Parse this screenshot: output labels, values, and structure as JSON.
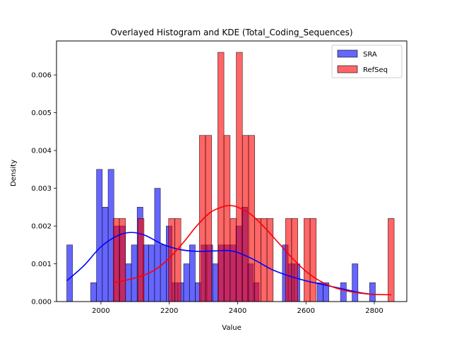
{
  "chart_data": {
    "type": "histogram",
    "title": "Overlayed Histogram and KDE (Total_Coding_Sequences)",
    "xlabel": "Value",
    "ylabel": "Density",
    "xlim": [
      1870,
      2895
    ],
    "ylim": [
      0,
      0.0069
    ],
    "xticks": [
      2000,
      2200,
      2400,
      2600,
      2800
    ],
    "yticks": [
      0.0,
      0.001,
      0.002,
      0.003,
      0.004,
      0.005,
      0.006
    ],
    "ytick_labels": [
      "0.000",
      "0.001",
      "0.002",
      "0.003",
      "0.004",
      "0.005",
      "0.006"
    ],
    "legend_position": "upper right",
    "series": [
      {
        "name": "SRA",
        "color": "#0000ff",
        "bar_alpha": 0.6,
        "bins": [
          {
            "x0": 1900,
            "x1": 1917,
            "y": 0.0015
          },
          {
            "x0": 1970,
            "x1": 1987,
            "y": 0.0005
          },
          {
            "x0": 1987,
            "x1": 2004,
            "y": 0.0035
          },
          {
            "x0": 2004,
            "x1": 2021,
            "y": 0.0025
          },
          {
            "x0": 2021,
            "x1": 2038,
            "y": 0.0035
          },
          {
            "x0": 2038,
            "x1": 2055,
            "y": 0.002
          },
          {
            "x0": 2055,
            "x1": 2072,
            "y": 0.002
          },
          {
            "x0": 2072,
            "x1": 2089,
            "y": 0.001
          },
          {
            "x0": 2089,
            "x1": 2106,
            "y": 0.0015
          },
          {
            "x0": 2106,
            "x1": 2123,
            "y": 0.0025
          },
          {
            "x0": 2123,
            "x1": 2140,
            "y": 0.0015
          },
          {
            "x0": 2140,
            "x1": 2157,
            "y": 0.0015
          },
          {
            "x0": 2157,
            "x1": 2174,
            "y": 0.003
          },
          {
            "x0": 2174,
            "x1": 2191,
            "y": 0.0015
          },
          {
            "x0": 2191,
            "x1": 2208,
            "y": 0.002
          },
          {
            "x0": 2208,
            "x1": 2225,
            "y": 0.0005
          },
          {
            "x0": 2225,
            "x1": 2242,
            "y": 0.0005
          },
          {
            "x0": 2242,
            "x1": 2259,
            "y": 0.001
          },
          {
            "x0": 2259,
            "x1": 2276,
            "y": 0.0015
          },
          {
            "x0": 2276,
            "x1": 2293,
            "y": 0.0005
          },
          {
            "x0": 2293,
            "x1": 2310,
            "y": 0.0015
          },
          {
            "x0": 2310,
            "x1": 2327,
            "y": 0.0015
          },
          {
            "x0": 2327,
            "x1": 2344,
            "y": 0.001
          },
          {
            "x0": 2344,
            "x1": 2361,
            "y": 0.0015
          },
          {
            "x0": 2361,
            "x1": 2378,
            "y": 0.0015
          },
          {
            "x0": 2378,
            "x1": 2395,
            "y": 0.0015
          },
          {
            "x0": 2395,
            "x1": 2412,
            "y": 0.002
          },
          {
            "x0": 2412,
            "x1": 2429,
            "y": 0.0025
          },
          {
            "x0": 2429,
            "x1": 2446,
            "y": 0.001
          },
          {
            "x0": 2446,
            "x1": 2463,
            "y": 0.0005
          },
          {
            "x0": 2531,
            "x1": 2548,
            "y": 0.0015
          },
          {
            "x0": 2548,
            "x1": 2565,
            "y": 0.001
          },
          {
            "x0": 2565,
            "x1": 2582,
            "y": 0.001
          },
          {
            "x0": 2633,
            "x1": 2650,
            "y": 0.0005
          },
          {
            "x0": 2650,
            "x1": 2667,
            "y": 0.0005
          },
          {
            "x0": 2701,
            "x1": 2718,
            "y": 0.0005
          },
          {
            "x0": 2735,
            "x1": 2752,
            "y": 0.001
          },
          {
            "x0": 2786,
            "x1": 2803,
            "y": 0.0005
          }
        ],
        "kde": [
          {
            "x": 1900,
            "y": 0.00055
          },
          {
            "x": 1950,
            "y": 0.00095
          },
          {
            "x": 2000,
            "y": 0.00145
          },
          {
            "x": 2050,
            "y": 0.00175
          },
          {
            "x": 2090,
            "y": 0.00183
          },
          {
            "x": 2130,
            "y": 0.00175
          },
          {
            "x": 2180,
            "y": 0.00152
          },
          {
            "x": 2230,
            "y": 0.00138
          },
          {
            "x": 2280,
            "y": 0.00133
          },
          {
            "x": 2330,
            "y": 0.00134
          },
          {
            "x": 2370,
            "y": 0.00135
          },
          {
            "x": 2400,
            "y": 0.0013
          },
          {
            "x": 2450,
            "y": 0.0011
          },
          {
            "x": 2500,
            "y": 0.00085
          },
          {
            "x": 2550,
            "y": 0.00068
          },
          {
            "x": 2600,
            "y": 0.00055
          },
          {
            "x": 2650,
            "y": 0.00045
          },
          {
            "x": 2700,
            "y": 0.00035
          },
          {
            "x": 2750,
            "y": 0.00025
          },
          {
            "x": 2800,
            "y": 0.00018
          }
        ]
      },
      {
        "name": "RefSeq",
        "color": "#ff0000",
        "bar_alpha": 0.6,
        "bins": [
          {
            "x0": 2036,
            "x1": 2054,
            "y": 0.0022
          },
          {
            "x0": 2054,
            "x1": 2072,
            "y": 0.0022
          },
          {
            "x0": 2108,
            "x1": 2126,
            "y": 0.0022
          },
          {
            "x0": 2198,
            "x1": 2216,
            "y": 0.0022
          },
          {
            "x0": 2216,
            "x1": 2234,
            "y": 0.0022
          },
          {
            "x0": 2288,
            "x1": 2306,
            "y": 0.0044
          },
          {
            "x0": 2306,
            "x1": 2324,
            "y": 0.0044
          },
          {
            "x0": 2342,
            "x1": 2360,
            "y": 0.0066
          },
          {
            "x0": 2360,
            "x1": 2378,
            "y": 0.0044
          },
          {
            "x0": 2378,
            "x1": 2396,
            "y": 0.0022
          },
          {
            "x0": 2396,
            "x1": 2414,
            "y": 0.0066
          },
          {
            "x0": 2414,
            "x1": 2432,
            "y": 0.0044
          },
          {
            "x0": 2432,
            "x1": 2450,
            "y": 0.0044
          },
          {
            "x0": 2450,
            "x1": 2468,
            "y": 0.0022
          },
          {
            "x0": 2468,
            "x1": 2486,
            "y": 0.0022
          },
          {
            "x0": 2486,
            "x1": 2504,
            "y": 0.0022
          },
          {
            "x0": 2540,
            "x1": 2558,
            "y": 0.0022
          },
          {
            "x0": 2558,
            "x1": 2576,
            "y": 0.0022
          },
          {
            "x0": 2594,
            "x1": 2612,
            "y": 0.0022
          },
          {
            "x0": 2612,
            "x1": 2630,
            "y": 0.0022
          },
          {
            "x0": 2840,
            "x1": 2858,
            "y": 0.0022
          }
        ],
        "kde": [
          {
            "x": 2036,
            "y": 0.0005
          },
          {
            "x": 2080,
            "y": 0.00058
          },
          {
            "x": 2120,
            "y": 0.00068
          },
          {
            "x": 2160,
            "y": 0.00085
          },
          {
            "x": 2200,
            "y": 0.00115
          },
          {
            "x": 2240,
            "y": 0.00155
          },
          {
            "x": 2280,
            "y": 0.002
          },
          {
            "x": 2320,
            "y": 0.00236
          },
          {
            "x": 2360,
            "y": 0.00252
          },
          {
            "x": 2380,
            "y": 0.00254
          },
          {
            "x": 2400,
            "y": 0.0025
          },
          {
            "x": 2440,
            "y": 0.0023
          },
          {
            "x": 2480,
            "y": 0.00195
          },
          {
            "x": 2520,
            "y": 0.00155
          },
          {
            "x": 2560,
            "y": 0.00115
          },
          {
            "x": 2600,
            "y": 0.0008
          },
          {
            "x": 2640,
            "y": 0.00055
          },
          {
            "x": 2680,
            "y": 0.00038
          },
          {
            "x": 2720,
            "y": 0.00028
          },
          {
            "x": 2760,
            "y": 0.00022
          },
          {
            "x": 2800,
            "y": 0.00019
          },
          {
            "x": 2850,
            "y": 0.00018
          }
        ]
      }
    ]
  }
}
